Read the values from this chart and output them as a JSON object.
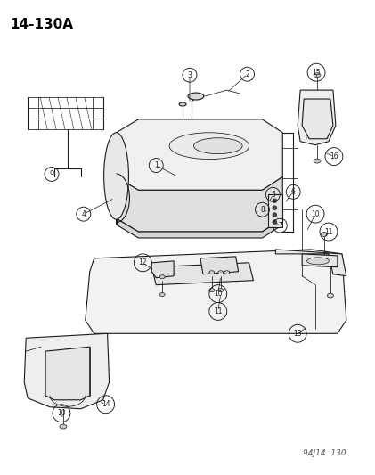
{
  "title": "14-130A",
  "footer": "94J14  130",
  "bg_color": "#ffffff",
  "line_color": "#1a1a1a",
  "label_color": "#1a1a1a",
  "title_fontsize": 11,
  "footer_fontsize": 6.5,
  "label_fontsize": 6.5,
  "figsize": [
    4.21,
    5.33
  ],
  "dpi": 100
}
